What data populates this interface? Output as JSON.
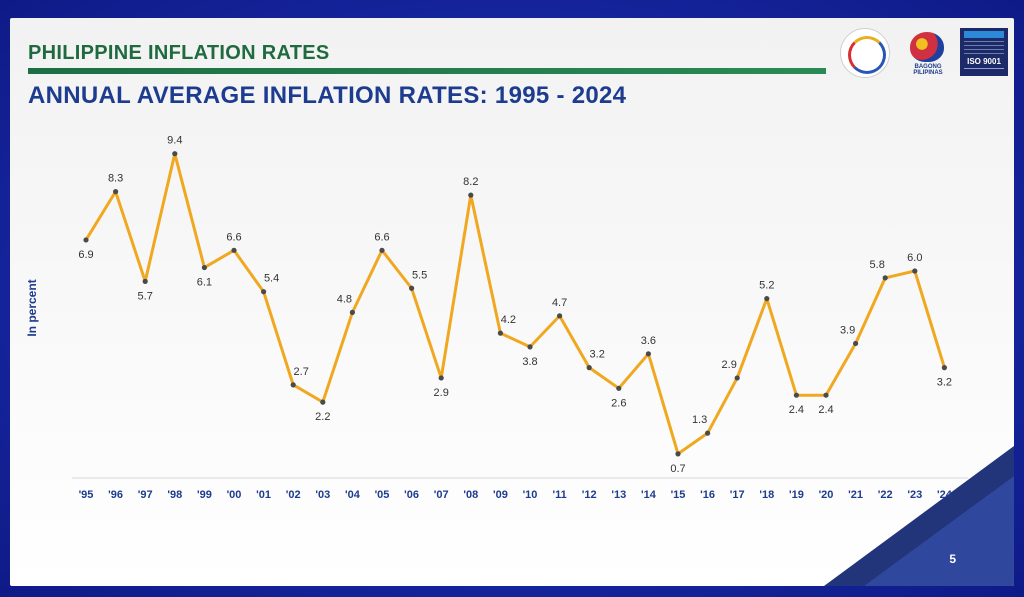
{
  "header": {
    "supertitle": "PHILIPPINE INFLATION RATES",
    "title": "ANNUAL AVERAGE INFLATION RATES: 1995 - 2024"
  },
  "logos": {
    "logo2_caption": "BAGONG PILIPINAS",
    "logo3_text": "ISO 9001"
  },
  "page_number": "5",
  "colors": {
    "line": "#f0a820",
    "point": "#4a4a4a",
    "supertitle": "#1f6b3f",
    "title": "#1d3c8f",
    "tick": "#1d3c8f"
  },
  "chart_data": {
    "type": "line",
    "title": "ANNUAL AVERAGE INFLATION RATES: 1995 - 2024",
    "xlabel": "",
    "ylabel": "In percent",
    "categories": [
      "'95",
      "'96",
      "'97",
      "'98",
      "'99",
      "'00",
      "'01",
      "'02",
      "'03",
      "'04",
      "'05",
      "'06",
      "'07",
      "'08",
      "'09",
      "'10",
      "'11",
      "'12",
      "'13",
      "'14",
      "'15",
      "'16",
      "'17",
      "'18",
      "'19",
      "'20",
      "'21",
      "'22",
      "'23",
      "'24"
    ],
    "series": [
      {
        "values": [
          6.9,
          8.3,
          5.7,
          9.4,
          6.1,
          6.6,
          5.4,
          2.7,
          2.2,
          4.8,
          6.6,
          5.5,
          2.9,
          8.2,
          4.2,
          3.8,
          4.7,
          3.2,
          2.6,
          3.6,
          0.7,
          1.3,
          2.9,
          5.2,
          2.4,
          2.4,
          3.9,
          5.8,
          6.0,
          3.2
        ],
        "labels": [
          "6.9",
          "8.3",
          "5.7",
          "9.4",
          "6.1",
          "6.6",
          "5.4",
          "2.7",
          "2.2",
          "4.8",
          "6.6",
          "5.5",
          "2.9",
          "8.2",
          "4.2",
          "3.8",
          "4.7",
          "3.2",
          "2.6",
          "3.6",
          "0.7",
          "1.3",
          "2.9",
          "5.2",
          "2.4",
          "2.4",
          "3.9",
          "5.8",
          "6.0",
          "3.2"
        ]
      }
    ],
    "ylim": [
      0,
      10
    ],
    "grid": false,
    "legend": "none"
  }
}
